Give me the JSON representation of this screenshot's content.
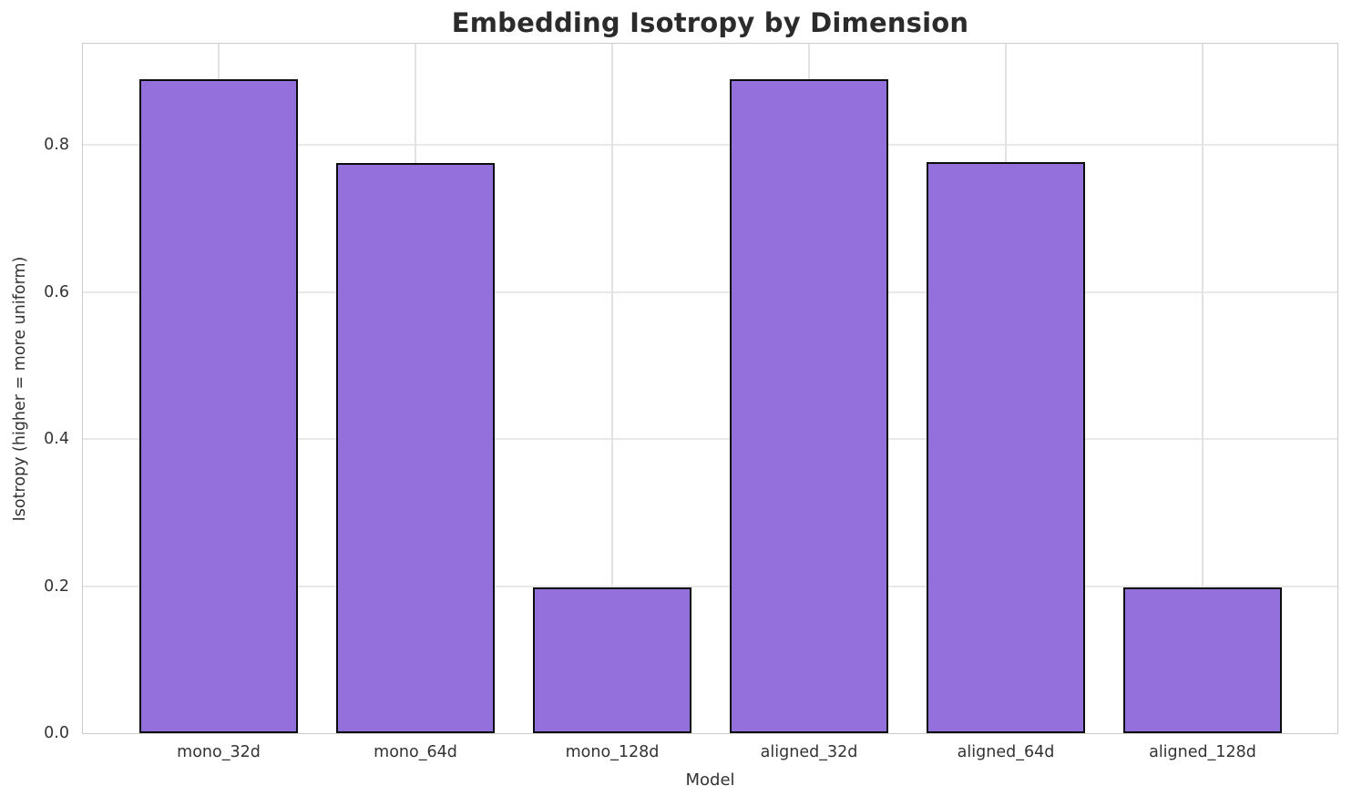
{
  "chart_data": {
    "type": "bar",
    "title": "Embedding Isotropy by Dimension",
    "xlabel": "Model",
    "ylabel": "Isotropy (higher = more uniform)",
    "categories": [
      "mono_32d",
      "mono_64d",
      "mono_128d",
      "aligned_32d",
      "aligned_64d",
      "aligned_128d"
    ],
    "values": [
      0.889,
      0.775,
      0.198,
      0.889,
      0.776,
      0.198
    ],
    "ylim": [
      0,
      0.9375
    ],
    "yticks": [
      0.0,
      0.2,
      0.4,
      0.6,
      0.8
    ],
    "ytick_labels": [
      "0.0",
      "0.2",
      "0.4",
      "0.6",
      "0.8"
    ],
    "grid": true,
    "legend_position": "none",
    "bar_color": "#9370DB",
    "bar_edge_color": "#0d0d0d",
    "grid_color": "#e8e8e8",
    "spine_color": "#cbcbcb",
    "text_color": "#333333",
    "title_color": "#2b2b2b"
  }
}
